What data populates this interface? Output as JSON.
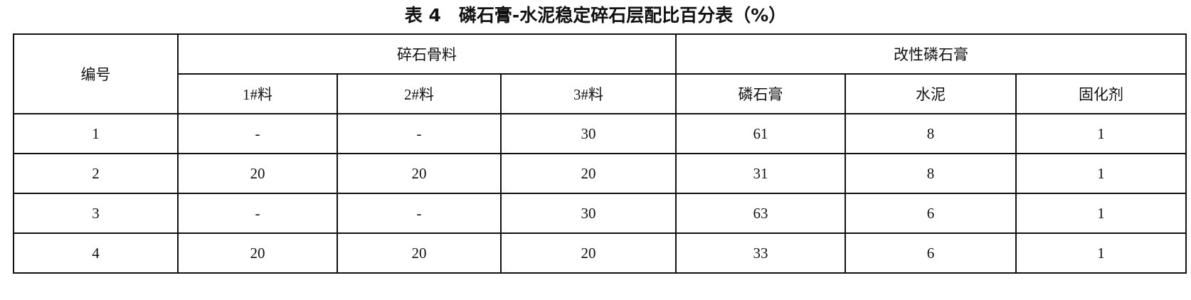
{
  "title": "表 4　磷石膏-水泥稳定碎石层配比百分表（%）",
  "header": {
    "id_label": "编号",
    "group1": "碎石骨料",
    "group2": "改性磷石膏",
    "columns": [
      "1#料",
      "2#料",
      "3#料",
      "磷石膏",
      "水泥",
      "固化剂"
    ]
  },
  "rows": [
    [
      "1",
      "-",
      "-",
      "30",
      "61",
      "8",
      "1"
    ],
    [
      "2",
      "20",
      "20",
      "20",
      "31",
      "8",
      "1"
    ],
    [
      "3",
      "-",
      "-",
      "30",
      "63",
      "6",
      "1"
    ],
    [
      "4",
      "20",
      "20",
      "20",
      "33",
      "6",
      "1"
    ]
  ]
}
